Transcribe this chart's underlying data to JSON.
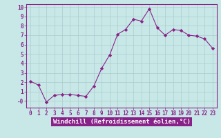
{
  "x": [
    0,
    1,
    2,
    3,
    4,
    5,
    6,
    7,
    8,
    9,
    10,
    11,
    12,
    13,
    14,
    15,
    16,
    17,
    18,
    19,
    20,
    21,
    22,
    23
  ],
  "y": [
    2.1,
    1.7,
    -0.1,
    0.6,
    0.7,
    0.7,
    0.6,
    0.5,
    1.6,
    3.5,
    4.9,
    7.1,
    7.6,
    8.7,
    8.5,
    9.8,
    7.8,
    7.0,
    7.6,
    7.5,
    7.0,
    6.9,
    6.6,
    5.6
  ],
  "line_color": "#882288",
  "marker": "D",
  "marker_size": 2.2,
  "bg_color": "#c8e8e8",
  "grid_color": "#aacccc",
  "xlabel": "Windchill (Refroidissement éolien,°C)",
  "xlabel_color": "#882288",
  "ylim": [
    -0.7,
    10.3
  ],
  "ytick_labels": [
    "10",
    "9",
    "8",
    "7",
    "6",
    "5",
    "4",
    "3",
    "2",
    "1",
    "-0"
  ],
  "yticks": [
    10,
    9,
    8,
    7,
    6,
    5,
    4,
    3,
    2,
    1,
    0
  ],
  "xticks": [
    0,
    1,
    2,
    3,
    4,
    5,
    6,
    7,
    8,
    9,
    10,
    11,
    12,
    13,
    14,
    15,
    16,
    17,
    18,
    19,
    20,
    21,
    22,
    23
  ],
  "tick_label_size": 5.5,
  "xlabel_size": 6.5,
  "tick_color": "#882288",
  "spine_color": "#882288",
  "xlabel_bg": "#8800aa"
}
